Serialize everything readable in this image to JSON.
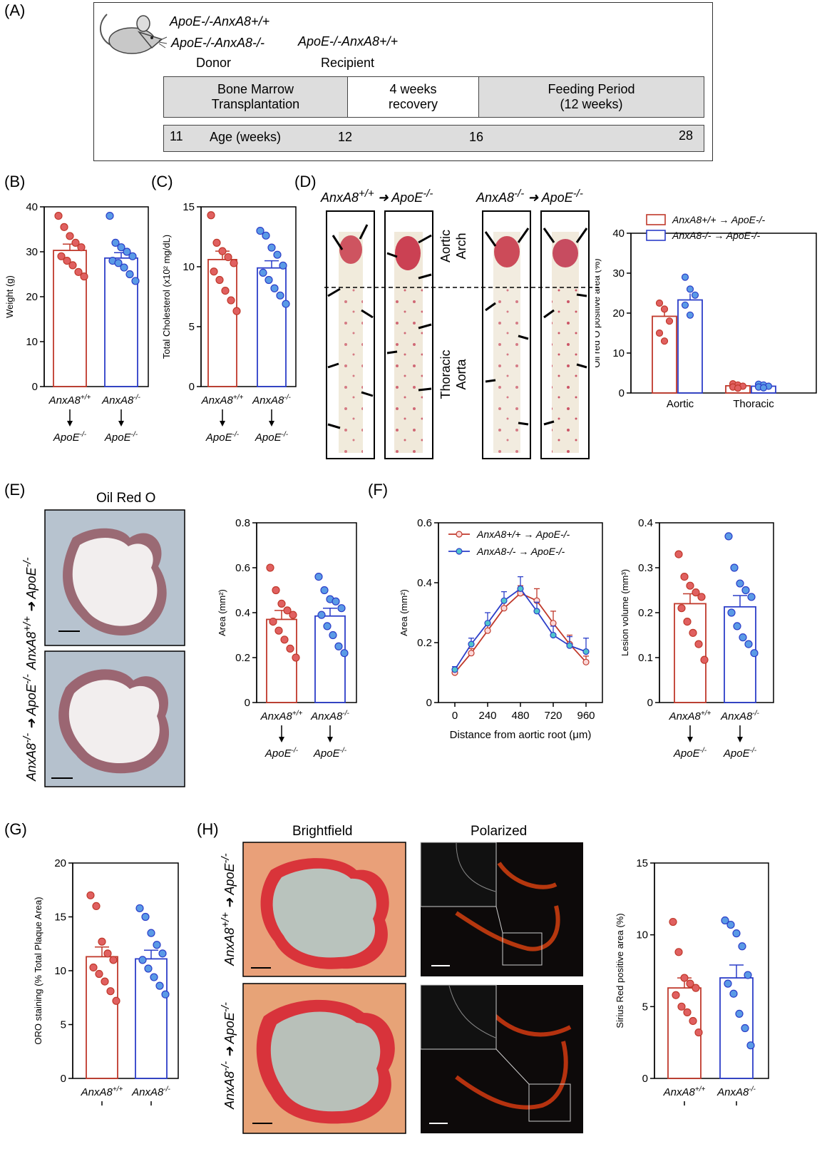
{
  "panel_labels": [
    "(A)",
    "(B)",
    "(C)",
    "(D)",
    "(E)",
    "(F)",
    "(G)",
    "(H)"
  ],
  "colors": {
    "wt": "#c0392b",
    "ko": "#2c3ec9",
    "wt_fill": "#e06060",
    "ko_fill": "#5a9ae6"
  },
  "geno": {
    "wt": "AnxA8",
    "wt_sup": "+/+",
    "ko": "AnxA8",
    "ko_sup": "-/-",
    "recip": "ApoE",
    "recip_sup": "-/-"
  },
  "panelA": {
    "donor1": "ApoE-/-AnxA8+/+",
    "donor2": "ApoE-/-AnxA8-/-",
    "donor_label": "Donor",
    "recipient": "ApoE-/-AnxA8+/+",
    "recipient_label": "Recipient",
    "box1": [
      "Bone Marrow",
      "Transplantation"
    ],
    "box2": [
      "4 weeks",
      "recovery"
    ],
    "box3": [
      "Feeding Period",
      "(12 weeks)"
    ],
    "age_title": "Age (weeks)",
    "ages": [
      "11",
      "12",
      "16",
      "28"
    ]
  },
  "panelD": {
    "arch": [
      "Aortic",
      "Arch"
    ],
    "thoracic": [
      "Thoracic",
      "Aorta"
    ]
  },
  "panelE": {
    "title": "Oil Red O"
  },
  "panelH": {
    "bright": "Brightfield",
    "polar": "Polarized"
  },
  "chart_data": [
    {
      "id": "B",
      "type": "bar",
      "categories": [
        "AnxA8+/+ → ApoE-/-",
        "AnxA8-/- → ApoE-/-"
      ],
      "ylabel": "Weight (g)",
      "ylim": [
        0,
        40
      ],
      "yticks": [
        0,
        10,
        20,
        30,
        40
      ],
      "means": [
        30.3,
        28.6
      ],
      "sem": [
        1.4,
        1.2
      ],
      "points": [
        [
          38,
          35.5,
          33.5,
          32,
          31,
          29,
          28,
          27,
          25.5,
          24.5
        ],
        [
          38,
          32,
          31,
          30,
          29,
          28,
          27.5,
          26.5,
          25,
          23.5
        ]
      ]
    },
    {
      "id": "C",
      "type": "bar",
      "categories": [
        "AnxA8+/+ → ApoE-/-",
        "AnxA8-/- → ApoE-/-"
      ],
      "ylabel": "Total Cholesterol (x10² mg/dL)",
      "ylim": [
        0,
        15
      ],
      "yticks": [
        0,
        5,
        10,
        15
      ],
      "means": [
        10.6,
        9.9
      ],
      "sem": [
        0.7,
        0.6
      ],
      "points": [
        [
          14.3,
          12,
          11.3,
          10.8,
          10.3,
          9.6,
          8.9,
          8,
          7.2,
          6.3
        ],
        [
          13,
          12.6,
          11.6,
          11,
          10.1,
          9.5,
          8.9,
          8.2,
          7.6,
          6.9
        ]
      ]
    },
    {
      "id": "D",
      "type": "bar",
      "categories": [
        "Aortic",
        "Thoracic"
      ],
      "ylabel": "Oil red O positive area (%)",
      "ylim": [
        0,
        40
      ],
      "yticks": [
        0,
        10,
        20,
        30,
        40
      ],
      "series": [
        {
          "name": "AnxA8+/+ → ApoE-/-",
          "means": [
            19.2,
            1.8
          ],
          "sem": [
            1.5,
            0.2
          ],
          "points": [
            [
              22.5,
              21,
              18,
              15,
              13
            ],
            [
              2.3,
              2,
              1.7,
              1.5,
              1.2
            ]
          ]
        },
        {
          "name": "AnxA8-/- → ApoE-/-",
          "means": [
            23.3,
            1.7
          ],
          "sem": [
            1.6,
            0.2
          ],
          "points": [
            [
              29,
              26,
              24.5,
              22,
              19.5
            ],
            [
              2.2,
              2,
              1.7,
              1.5,
              1.3
            ]
          ]
        }
      ]
    },
    {
      "id": "E",
      "type": "bar",
      "categories": [
        "AnxA8+/+ → ApoE-/-",
        "AnxA8-/- → ApoE-/-"
      ],
      "ylabel": "Area (mm²)",
      "ylim": [
        0,
        0.8
      ],
      "yticks": [
        0,
        0.2,
        0.4,
        0.6,
        0.8
      ],
      "means": [
        0.37,
        0.385
      ],
      "sem": [
        0.04,
        0.035
      ],
      "points": [
        [
          0.6,
          0.5,
          0.44,
          0.41,
          0.39,
          0.36,
          0.32,
          0.28,
          0.24,
          0.2
        ],
        [
          0.56,
          0.5,
          0.46,
          0.45,
          0.42,
          0.39,
          0.34,
          0.3,
          0.25,
          0.22
        ]
      ]
    },
    {
      "id": "F1",
      "type": "line",
      "xlabel": "Distance from aortic root (μm)",
      "ylabel": "Area (mm²)",
      "ylim": [
        0,
        0.6
      ],
      "yticks": [
        0,
        0.2,
        0.4,
        0.6
      ],
      "xticks": [
        0,
        240,
        480,
        720,
        960
      ],
      "x": [
        0,
        120,
        240,
        360,
        480,
        600,
        720,
        840,
        960
      ],
      "series": [
        {
          "name": "AnxA8+/+ → ApoE-/-",
          "values": [
            0.1,
            0.165,
            0.24,
            0.315,
            0.365,
            0.34,
            0.265,
            0.195,
            0.135
          ],
          "err": [
            0.01,
            0.015,
            0.02,
            0.025,
            0.025,
            0.04,
            0.04,
            0.03,
            0.02
          ]
        },
        {
          "name": "AnxA8-/- → ApoE-/-",
          "values": [
            0.11,
            0.195,
            0.265,
            0.34,
            0.38,
            0.305,
            0.225,
            0.19,
            0.17
          ],
          "err": [
            0.01,
            0.02,
            0.035,
            0.03,
            0.04,
            0.03,
            0.03,
            0.03,
            0.045
          ]
        }
      ]
    },
    {
      "id": "F2",
      "type": "bar",
      "categories": [
        "AnxA8+/+ → ApoE-/-",
        "AnxA8-/- → ApoE-/-"
      ],
      "ylabel": "Lesion volume (mm³)",
      "ylim": [
        0,
        0.4
      ],
      "yticks": [
        0,
        0.1,
        0.2,
        0.3,
        0.4
      ],
      "means": [
        0.22,
        0.213
      ],
      "sem": [
        0.022,
        0.025
      ],
      "points": [
        [
          0.33,
          0.28,
          0.26,
          0.245,
          0.235,
          0.21,
          0.18,
          0.155,
          0.13,
          0.095
        ],
        [
          0.37,
          0.3,
          0.265,
          0.25,
          0.235,
          0.2,
          0.17,
          0.145,
          0.13,
          0.11
        ]
      ]
    },
    {
      "id": "G",
      "type": "bar",
      "categories": [
        "AnxA8+/+ → ApoE-/-",
        "AnxA8-/- → ApoE-/-"
      ],
      "ylabel": "ORO staining (% Total Plaque Area)",
      "ylim": [
        0,
        20
      ],
      "yticks": [
        0,
        5,
        10,
        15,
        20
      ],
      "means": [
        11.3,
        11.1
      ],
      "sem": [
        0.9,
        0.8
      ],
      "points": [
        [
          17,
          16,
          12.7,
          11.6,
          11,
          10.3,
          9.7,
          9,
          8.1,
          7.2
        ],
        [
          15.8,
          15,
          13.5,
          12.4,
          11.6,
          11,
          10.2,
          9.4,
          8.6,
          7.8
        ]
      ]
    },
    {
      "id": "H",
      "type": "bar",
      "categories": [
        "AnxA8+/+ → ApoE-/-",
        "AnxA8-/- → ApoE-/-"
      ],
      "ylabel": "Sirius Red positive area (%)",
      "ylim": [
        0,
        15
      ],
      "yticks": [
        0,
        5,
        10,
        15
      ],
      "means": [
        6.3,
        7.0
      ],
      "sem": [
        0.7,
        0.9
      ],
      "points": [
        [
          10.9,
          8.8,
          7,
          6.6,
          6.3,
          5.8,
          5,
          4.6,
          4,
          3.2
        ],
        [
          11,
          10.7,
          10.1,
          9.2,
          7.2,
          6.6,
          5.9,
          4.5,
          3.5,
          2.3
        ]
      ]
    }
  ]
}
